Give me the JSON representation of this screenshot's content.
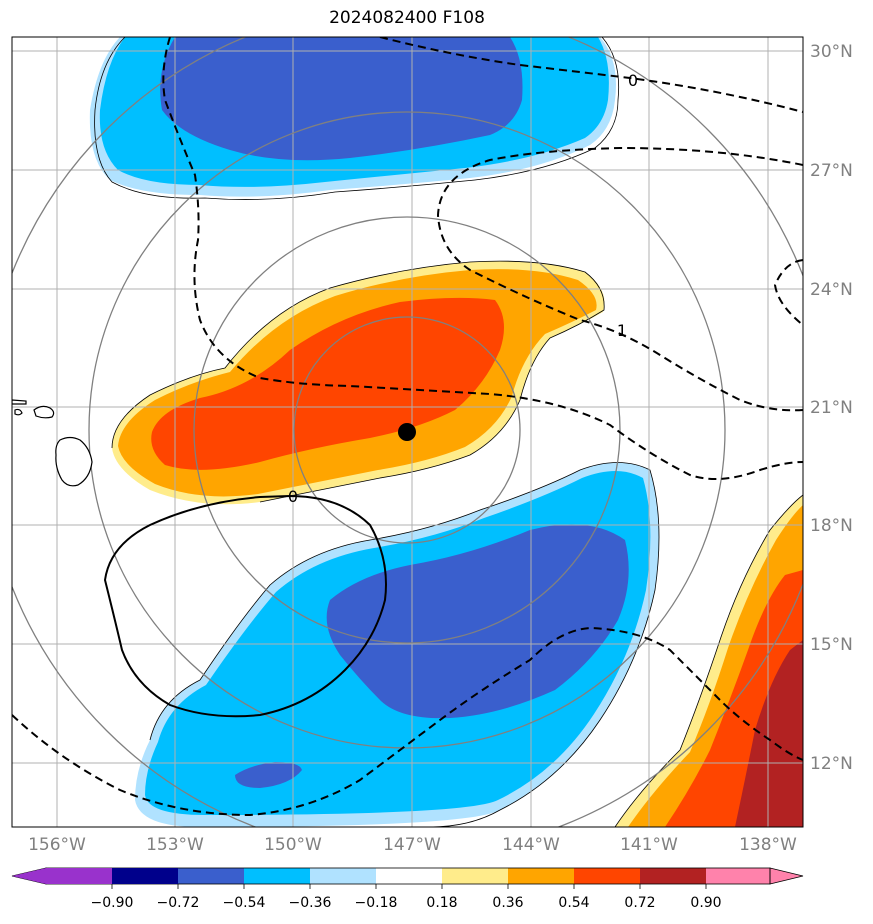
{
  "title": "2024082400 F108",
  "lat_labels": [
    "30°N",
    "27°N",
    "24°N",
    "21°N",
    "18°N",
    "15°N",
    "12°N"
  ],
  "lon_labels": [
    "156°W",
    "153°W",
    "150°W",
    "147°W",
    "144°W",
    "141°W",
    "138°W"
  ],
  "colorbar": {
    "ticks": [
      "−0.90",
      "−0.72",
      "−0.54",
      "−0.36",
      "−0.18",
      "0.18",
      "0.36",
      "0.54",
      "0.72",
      "0.90"
    ],
    "colors": [
      "#9932CC",
      "#00008B",
      "#3A5FCD",
      "#00BFFF",
      "#B0E2FF",
      "#FFFFFF",
      "#FFEC8B",
      "#FFA500",
      "#FF4500",
      "#B22222",
      "#FF82AB"
    ]
  },
  "contour_labels": {
    "zero_top": "0",
    "one": "1",
    "zero_solid": "0"
  },
  "storm_center": "black-dot"
}
